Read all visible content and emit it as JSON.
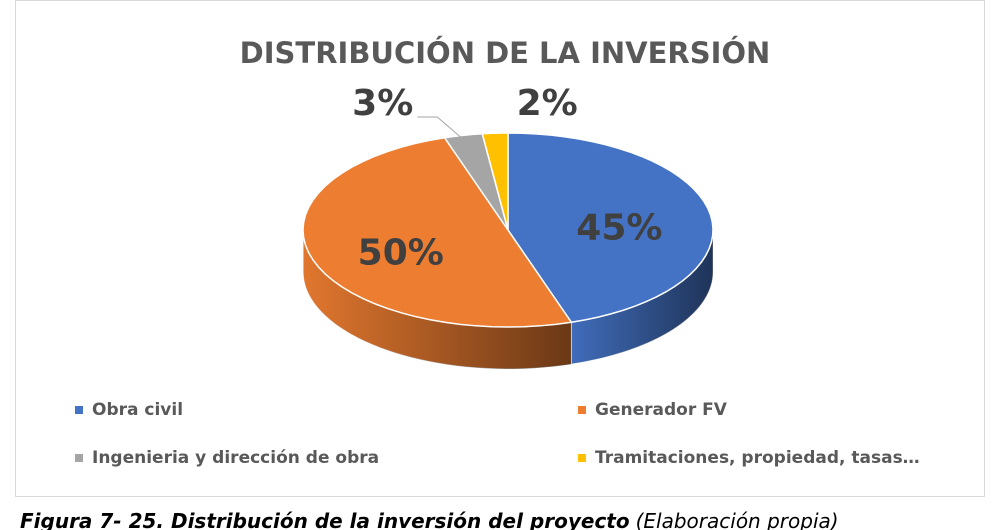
{
  "chart_data": {
    "type": "pie",
    "title": "DISTRIBUCIÓN DE LA INVERSIÓN",
    "categories": [
      "Obra civil",
      "Generador FV",
      "Ingenieria y dirección de obra",
      "Tramitaciones, propiedad, tasas…"
    ],
    "values": [
      45,
      50,
      3,
      2
    ],
    "value_labels": [
      "45%",
      "50%",
      "3%",
      "2%"
    ],
    "colors": [
      "#4472c4",
      "#ed7d31",
      "#a5a5a5",
      "#ffc000"
    ],
    "legend": "bottom"
  },
  "caption": {
    "figure": "Figura 7- 25. Distribución de la inversión del proyecto",
    "note": "(Elaboración propia)"
  }
}
